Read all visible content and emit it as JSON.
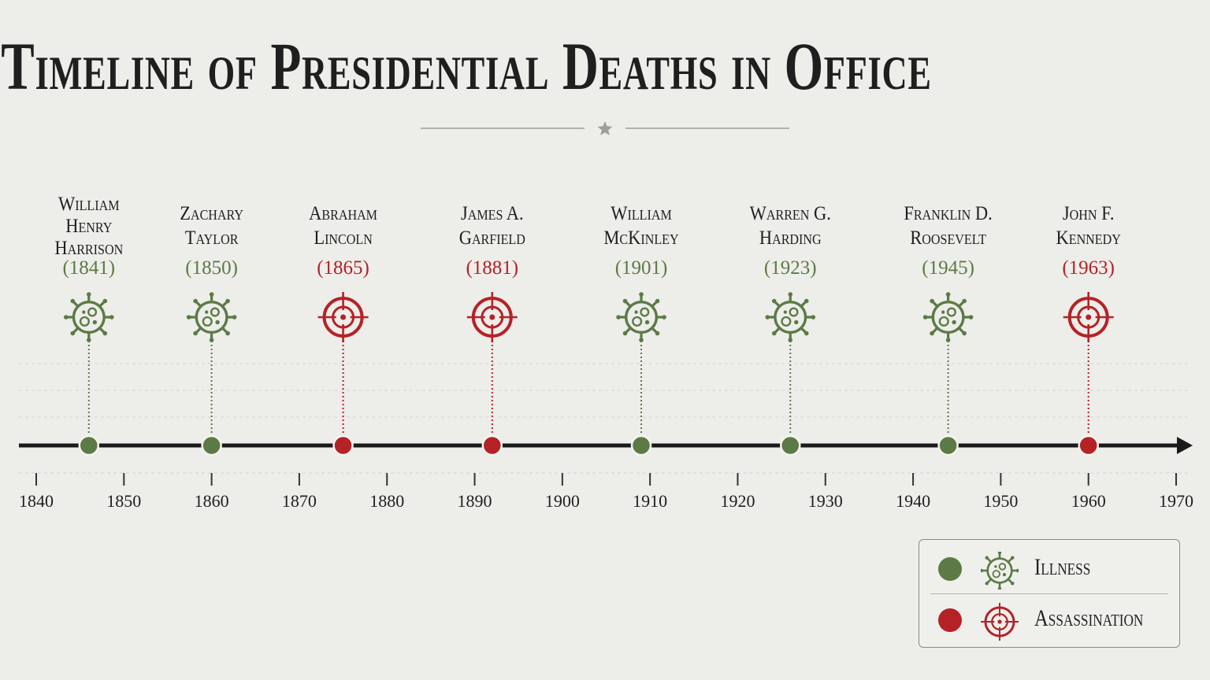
{
  "title": "Timeline of Presidential Deaths in Office",
  "colors": {
    "illness": "#5c7a45",
    "assassination": "#b52226",
    "axis": "#1a1a1a",
    "background": "#ededea"
  },
  "icons": {
    "illness": "virus-icon",
    "assassination": "crosshair-target-icon"
  },
  "legend": {
    "position": "bottom-right",
    "items": [
      {
        "label": "Illness",
        "type": "illness"
      },
      {
        "label": "Assassination",
        "type": "assassination"
      }
    ]
  },
  "chart_data": {
    "type": "scatter",
    "title": "Timeline of Presidential Deaths in Office",
    "xlabel": "",
    "ylabel": "",
    "xlim": [
      1840,
      1970
    ],
    "x_ticks": [
      1840,
      1850,
      1860,
      1870,
      1880,
      1890,
      1900,
      1910,
      1920,
      1930,
      1940,
      1950,
      1960,
      1970
    ],
    "grid": true,
    "points": [
      {
        "name": [
          "William",
          "Henry",
          "Harrison"
        ],
        "year_label": "(1841)",
        "x": 1846,
        "cause": "illness"
      },
      {
        "name": [
          "Zachary",
          "Taylor"
        ],
        "year_label": "(1850)",
        "x": 1860,
        "cause": "illness"
      },
      {
        "name": [
          "Abraham",
          "Lincoln"
        ],
        "year_label": "(1865)",
        "x": 1875,
        "cause": "assassination"
      },
      {
        "name": [
          "James A.",
          "Garfield"
        ],
        "year_label": "(1881)",
        "x": 1892,
        "cause": "assassination"
      },
      {
        "name": [
          "William",
          "McKinley"
        ],
        "year_label": "(1901)",
        "x": 1909,
        "cause": "illness"
      },
      {
        "name": [
          "Warren G.",
          "Harding"
        ],
        "year_label": "(1923)",
        "x": 1926,
        "cause": "illness"
      },
      {
        "name": [
          "Franklin D.",
          "Roosevelt"
        ],
        "year_label": "(1945)",
        "x": 1944,
        "cause": "illness"
      },
      {
        "name": [
          "John F.",
          "Kennedy"
        ],
        "year_label": "(1963)",
        "x": 1960,
        "cause": "assassination"
      }
    ]
  }
}
